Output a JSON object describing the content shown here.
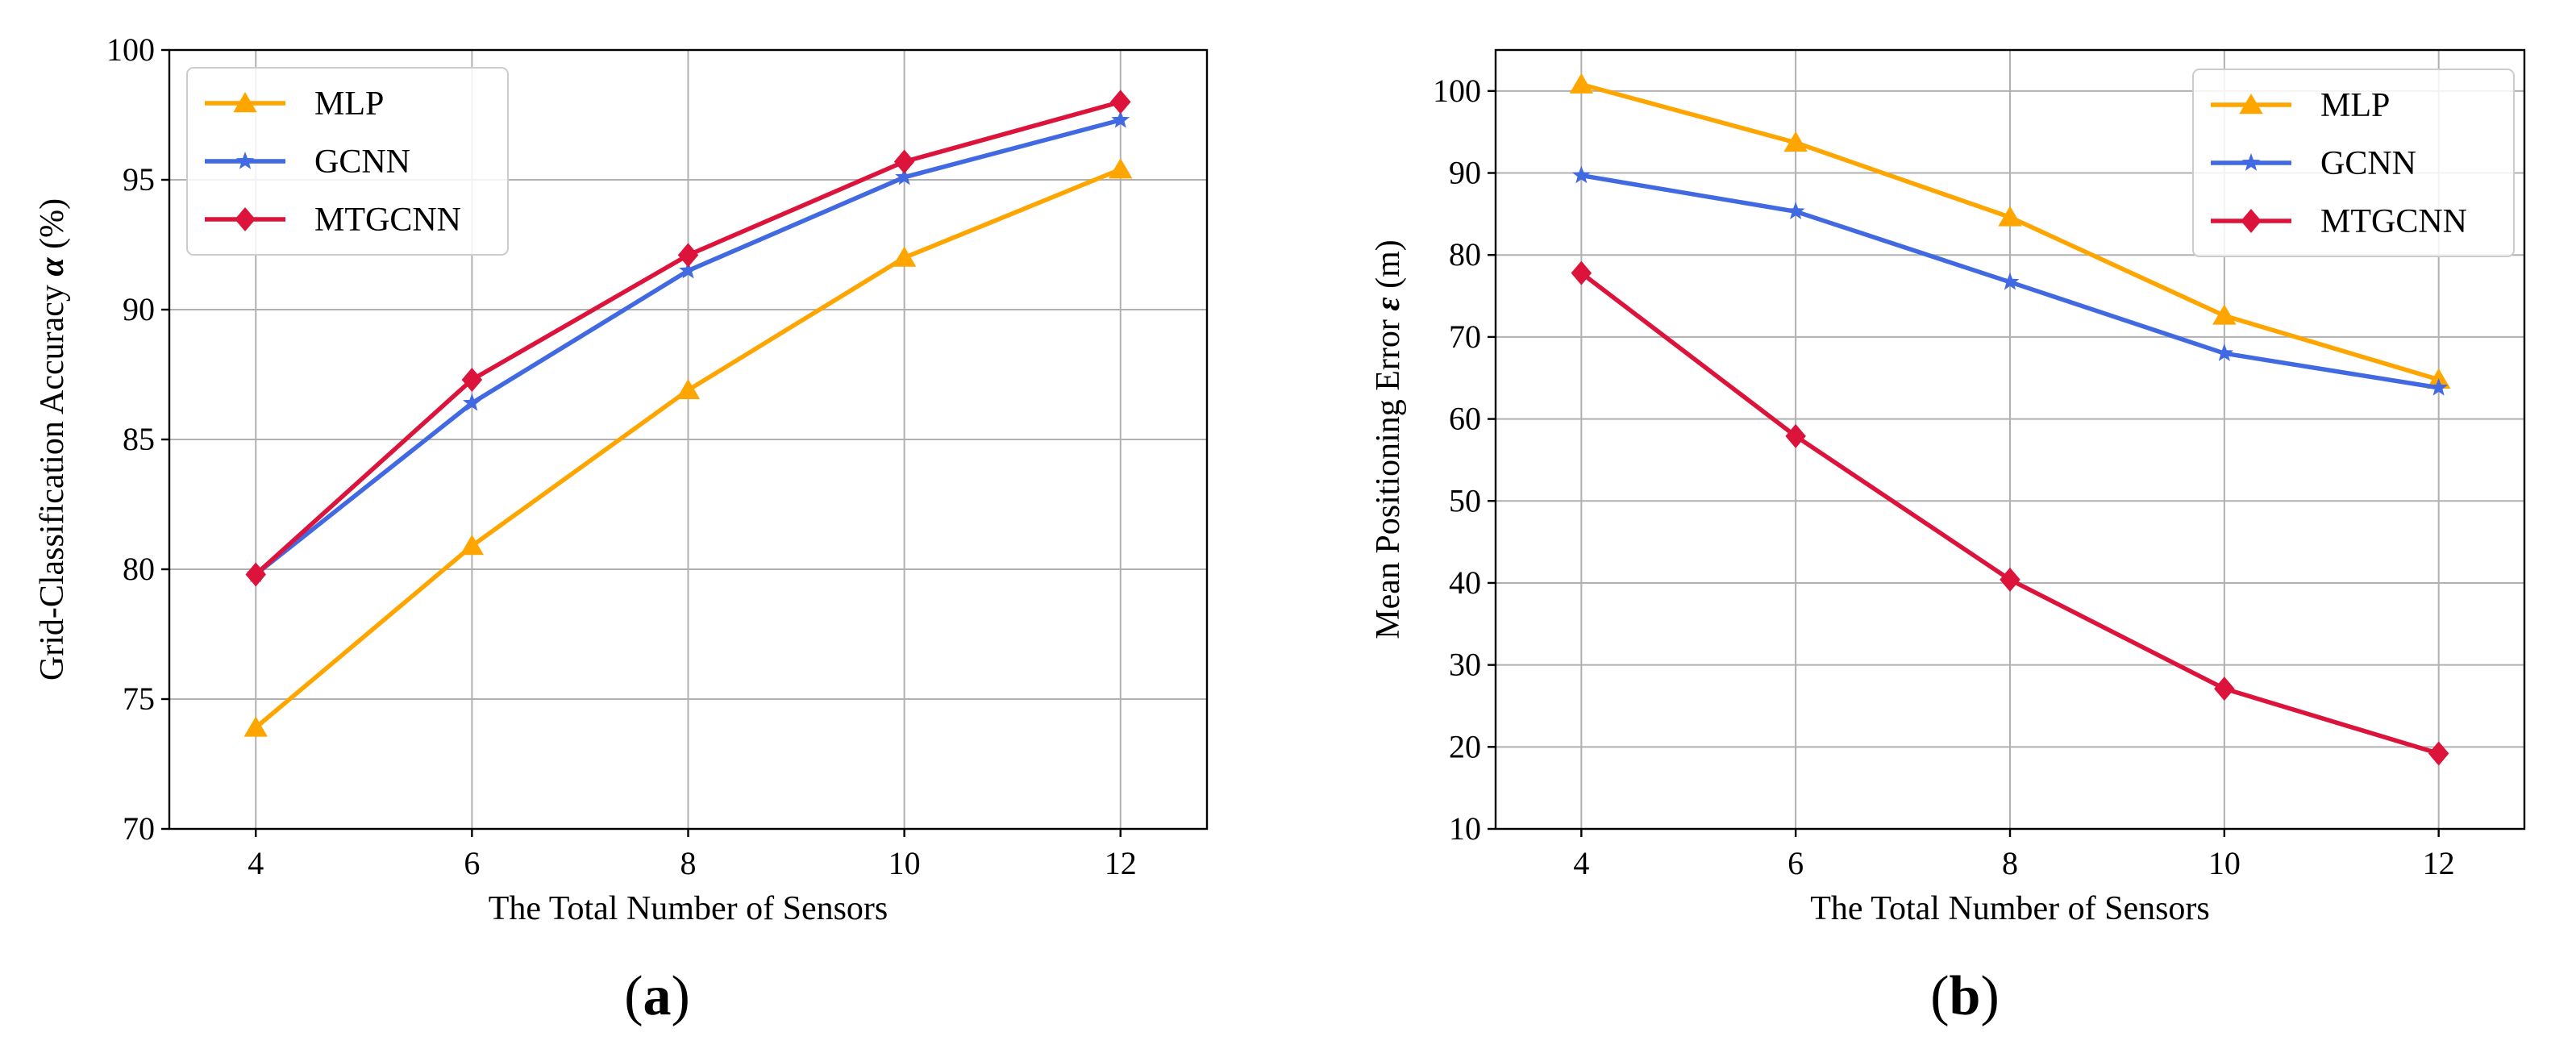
{
  "figure": {
    "panels": [
      {
        "label_open": "(",
        "label_letter": "a",
        "label_close": ")",
        "legend_position": "top-left"
      },
      {
        "label_open": "(",
        "label_letter": "b",
        "label_close": ")",
        "legend_position": "top-right"
      }
    ]
  },
  "colors": {
    "MLP": "#FFA500",
    "GCNN": "#4169E1",
    "MTGCNN": "#DC143C"
  },
  "chart_data": [
    {
      "type": "line",
      "title": "",
      "xlabel": "The Total Number of Sensors",
      "ylabel": "Grid-Classification Accuracy α (%)",
      "ylabel_pre": "Grid-Classification Accuracy ",
      "ylabel_symbol": "α",
      "ylabel_post": " (%)",
      "x": [
        4,
        6,
        8,
        10,
        12
      ],
      "xticks": [
        "4",
        "6",
        "8",
        "10",
        "12"
      ],
      "xlim": [
        3.2,
        12.8
      ],
      "ylim": [
        70,
        100
      ],
      "yticks": [
        "70",
        "75",
        "80",
        "85",
        "90",
        "95",
        "100"
      ],
      "grid": true,
      "series": [
        {
          "name": "MLP",
          "marker": "triangle",
          "values": [
            73.9,
            80.9,
            86.9,
            92.0,
            95.4
          ]
        },
        {
          "name": "GCNN",
          "marker": "star",
          "values": [
            79.8,
            86.4,
            91.5,
            95.1,
            97.3
          ]
        },
        {
          "name": "MTGCNN",
          "marker": "diamond",
          "values": [
            79.8,
            87.3,
            92.1,
            95.7,
            98.0
          ]
        }
      ]
    },
    {
      "type": "line",
      "title": "",
      "xlabel": "The Total Number of Sensors",
      "ylabel": "Mean Positioning Error ε (m)",
      "ylabel_pre": "Mean Positioning Error ",
      "ylabel_symbol": "ε",
      "ylabel_post": " (m)",
      "x": [
        4,
        6,
        8,
        10,
        12
      ],
      "xticks": [
        "4",
        "6",
        "8",
        "10",
        "12"
      ],
      "xlim": [
        3.2,
        12.8
      ],
      "ylim": [
        10,
        105
      ],
      "yticks": [
        "10",
        "20",
        "30",
        "40",
        "50",
        "60",
        "70",
        "80",
        "90",
        "100"
      ],
      "grid": true,
      "series": [
        {
          "name": "MLP",
          "marker": "triangle",
          "values": [
            100.8,
            93.7,
            84.6,
            72.6,
            64.8
          ]
        },
        {
          "name": "GCNN",
          "marker": "star",
          "values": [
            89.7,
            85.3,
            76.7,
            68.0,
            63.8
          ]
        },
        {
          "name": "MTGCNN",
          "marker": "diamond",
          "values": [
            77.8,
            57.9,
            40.4,
            27.1,
            19.2
          ]
        }
      ]
    }
  ]
}
